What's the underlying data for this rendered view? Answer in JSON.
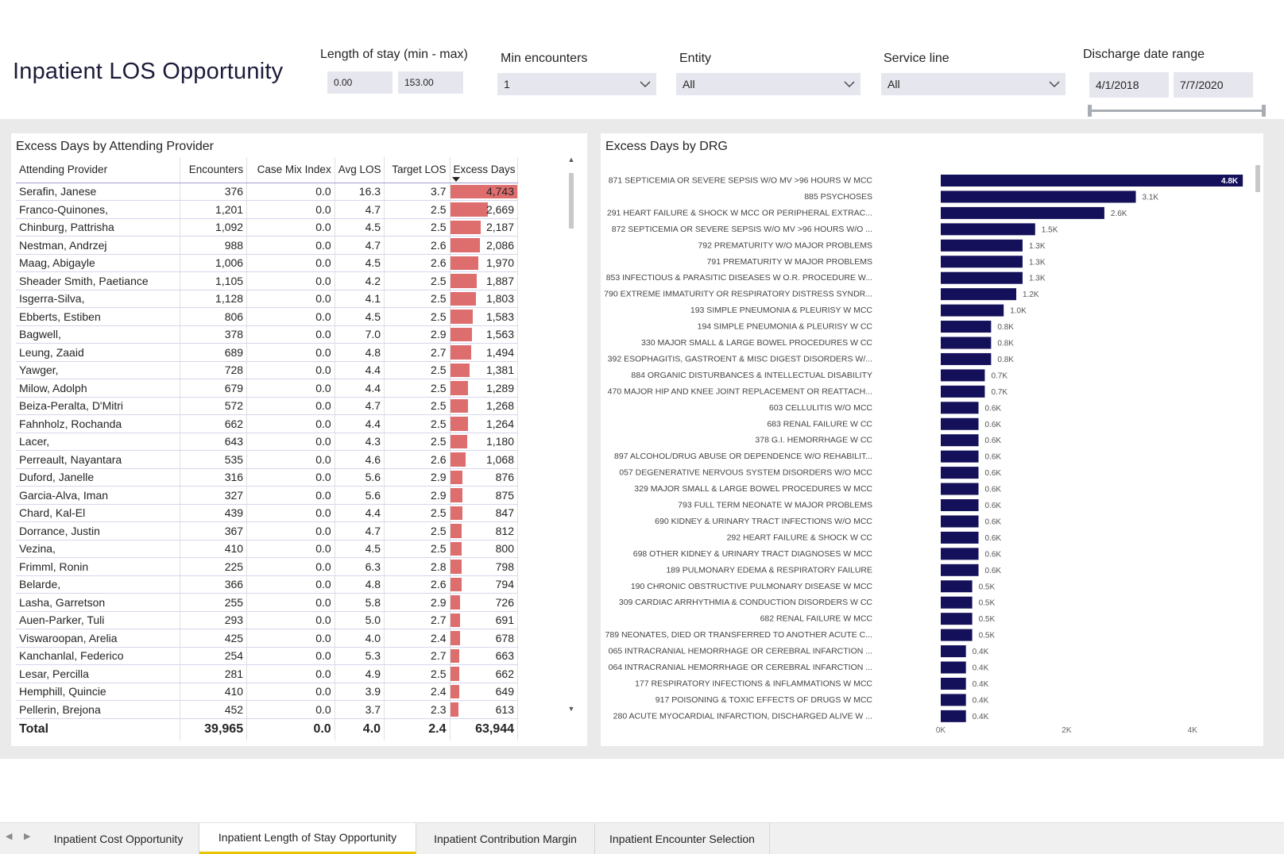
{
  "header": {
    "title": "Inpatient LOS Opportunity",
    "los_label": "Length of stay (min - max)",
    "los_min": "0.00",
    "los_max": "153.00",
    "min_enc_label": "Min encounters",
    "min_enc_value": "1",
    "entity_label": "Entity",
    "entity_value": "All",
    "service_label": "Service line",
    "service_value": "All",
    "date_label": "Discharge date range",
    "date_start": "4/1/2018",
    "date_end": "7/7/2020"
  },
  "provider_table": {
    "title": "Excess Days by Attending Provider",
    "columns": [
      "Attending Provider",
      "Encounters",
      "Case Mix Index",
      "Avg LOS",
      "Target LOS",
      "Excess Days"
    ],
    "bar_color": "#de6e6e",
    "rows": [
      {
        "name": "Serafin, Janese",
        "enc": "376",
        "cmi": "0.0",
        "avg": "16.3",
        "target": "3.7",
        "excess": "4,743",
        "excess_num": 4743
      },
      {
        "name": "Franco-Quinones,",
        "enc": "1,201",
        "cmi": "0.0",
        "avg": "4.7",
        "target": "2.5",
        "excess": "2,669",
        "excess_num": 2669
      },
      {
        "name": "Chinburg, Pattrisha",
        "enc": "1,092",
        "cmi": "0.0",
        "avg": "4.5",
        "target": "2.5",
        "excess": "2,187",
        "excess_num": 2187
      },
      {
        "name": "Nestman, Andrzej",
        "enc": "988",
        "cmi": "0.0",
        "avg": "4.7",
        "target": "2.6",
        "excess": "2,086",
        "excess_num": 2086
      },
      {
        "name": "Maag, Abigayle",
        "enc": "1,006",
        "cmi": "0.0",
        "avg": "4.5",
        "target": "2.6",
        "excess": "1,970",
        "excess_num": 1970
      },
      {
        "name": "Sheader Smith, Paetiance",
        "enc": "1,105",
        "cmi": "0.0",
        "avg": "4.2",
        "target": "2.5",
        "excess": "1,887",
        "excess_num": 1887
      },
      {
        "name": "Isgerra-Silva,",
        "enc": "1,128",
        "cmi": "0.0",
        "avg": "4.1",
        "target": "2.5",
        "excess": "1,803",
        "excess_num": 1803
      },
      {
        "name": "Ebberts, Estiben",
        "enc": "806",
        "cmi": "0.0",
        "avg": "4.5",
        "target": "2.5",
        "excess": "1,583",
        "excess_num": 1583
      },
      {
        "name": "Bagwell,",
        "enc": "378",
        "cmi": "0.0",
        "avg": "7.0",
        "target": "2.9",
        "excess": "1,563",
        "excess_num": 1563
      },
      {
        "name": "Leung, Zaaid",
        "enc": "689",
        "cmi": "0.0",
        "avg": "4.8",
        "target": "2.7",
        "excess": "1,494",
        "excess_num": 1494
      },
      {
        "name": "Yawger,",
        "enc": "728",
        "cmi": "0.0",
        "avg": "4.4",
        "target": "2.5",
        "excess": "1,381",
        "excess_num": 1381
      },
      {
        "name": "Milow, Adolph",
        "enc": "679",
        "cmi": "0.0",
        "avg": "4.4",
        "target": "2.5",
        "excess": "1,289",
        "excess_num": 1289
      },
      {
        "name": "Beiza-Peralta, D'Mitri",
        "enc": "572",
        "cmi": "0.0",
        "avg": "4.7",
        "target": "2.5",
        "excess": "1,268",
        "excess_num": 1268
      },
      {
        "name": "Fahnholz, Rochanda",
        "enc": "662",
        "cmi": "0.0",
        "avg": "4.4",
        "target": "2.5",
        "excess": "1,264",
        "excess_num": 1264
      },
      {
        "name": "Lacer,",
        "enc": "643",
        "cmi": "0.0",
        "avg": "4.3",
        "target": "2.5",
        "excess": "1,180",
        "excess_num": 1180
      },
      {
        "name": "Perreault, Nayantara",
        "enc": "535",
        "cmi": "0.0",
        "avg": "4.6",
        "target": "2.6",
        "excess": "1,068",
        "excess_num": 1068
      },
      {
        "name": "Duford, Janelle",
        "enc": "316",
        "cmi": "0.0",
        "avg": "5.6",
        "target": "2.9",
        "excess": "876",
        "excess_num": 876
      },
      {
        "name": "Garcia-Alva, Iman",
        "enc": "327",
        "cmi": "0.0",
        "avg": "5.6",
        "target": "2.9",
        "excess": "875",
        "excess_num": 875
      },
      {
        "name": "Chard, Kal-El",
        "enc": "439",
        "cmi": "0.0",
        "avg": "4.4",
        "target": "2.5",
        "excess": "847",
        "excess_num": 847
      },
      {
        "name": "Dorrance, Justin",
        "enc": "367",
        "cmi": "0.0",
        "avg": "4.7",
        "target": "2.5",
        "excess": "812",
        "excess_num": 812
      },
      {
        "name": "Vezina,",
        "enc": "410",
        "cmi": "0.0",
        "avg": "4.5",
        "target": "2.5",
        "excess": "800",
        "excess_num": 800
      },
      {
        "name": "Frimml, Ronin",
        "enc": "225",
        "cmi": "0.0",
        "avg": "6.3",
        "target": "2.8",
        "excess": "798",
        "excess_num": 798
      },
      {
        "name": "Belarde,",
        "enc": "366",
        "cmi": "0.0",
        "avg": "4.8",
        "target": "2.6",
        "excess": "794",
        "excess_num": 794
      },
      {
        "name": "Lasha, Garretson",
        "enc": "255",
        "cmi": "0.0",
        "avg": "5.8",
        "target": "2.9",
        "excess": "726",
        "excess_num": 726
      },
      {
        "name": "Auen-Parker, Tuli",
        "enc": "293",
        "cmi": "0.0",
        "avg": "5.0",
        "target": "2.7",
        "excess": "691",
        "excess_num": 691
      },
      {
        "name": "Viswaroopan, Arelia",
        "enc": "425",
        "cmi": "0.0",
        "avg": "4.0",
        "target": "2.4",
        "excess": "678",
        "excess_num": 678
      },
      {
        "name": "Kanchanlal, Federico",
        "enc": "254",
        "cmi": "0.0",
        "avg": "5.3",
        "target": "2.7",
        "excess": "663",
        "excess_num": 663
      },
      {
        "name": "Lesar, Percilla",
        "enc": "281",
        "cmi": "0.0",
        "avg": "4.9",
        "target": "2.5",
        "excess": "662",
        "excess_num": 662
      },
      {
        "name": "Hemphill, Quincie",
        "enc": "410",
        "cmi": "0.0",
        "avg": "3.9",
        "target": "2.4",
        "excess": "649",
        "excess_num": 649
      },
      {
        "name": "Pellerin, Brejona",
        "enc": "452",
        "cmi": "0.0",
        "avg": "3.7",
        "target": "2.3",
        "excess": "613",
        "excess_num": 613
      }
    ],
    "total": {
      "name": "Total",
      "enc": "39,965",
      "cmi": "0.0",
      "avg": "4.0",
      "target": "2.4",
      "excess": "63,944"
    }
  },
  "chart_data": {
    "type": "bar",
    "orientation": "horizontal",
    "title": "Excess Days by DRG",
    "bar_color": "#14105a",
    "xlim": [
      0,
      5000
    ],
    "xticks": [
      0,
      2000,
      4000
    ],
    "xtick_labels": [
      "0K",
      "2K",
      "4K"
    ],
    "grid": false,
    "categories": [
      "871 SEPTICEMIA OR SEVERE SEPSIS W/O MV >96 HOURS W MCC",
      "885 PSYCHOSES",
      "291 HEART FAILURE & SHOCK W MCC OR PERIPHERAL EXTRAC...",
      "872 SEPTICEMIA OR SEVERE SEPSIS W/O MV >96 HOURS W/O ...",
      "792 PREMATURITY W/O MAJOR PROBLEMS",
      "791 PREMATURITY W MAJOR PROBLEMS",
      "853 INFECTIOUS & PARASITIC DISEASES W O.R. PROCEDURE W...",
      "790 EXTREME IMMATURITY OR RESPIRATORY DISTRESS SYNDR...",
      "193 SIMPLE PNEUMONIA & PLEURISY W MCC",
      "194 SIMPLE PNEUMONIA & PLEURISY W CC",
      "330 MAJOR SMALL & LARGE BOWEL PROCEDURES W CC",
      "392 ESOPHAGITIS, GASTROENT & MISC DIGEST DISORDERS W/...",
      "884 ORGANIC DISTURBANCES & INTELLECTUAL DISABILITY",
      "470 MAJOR HIP AND KNEE JOINT REPLACEMENT OR REATTACH...",
      "603 CELLULITIS W/O MCC",
      "683 RENAL FAILURE W CC",
      "378 G.I. HEMORRHAGE W CC",
      "897 ALCOHOL/DRUG ABUSE OR DEPENDENCE W/O REHABILIT...",
      "057 DEGENERATIVE NERVOUS SYSTEM DISORDERS W/O MCC",
      "329 MAJOR SMALL & LARGE BOWEL PROCEDURES W MCC",
      "793 FULL TERM NEONATE W MAJOR PROBLEMS",
      "690 KIDNEY & URINARY TRACT INFECTIONS W/O MCC",
      "292 HEART FAILURE & SHOCK W CC",
      "698 OTHER KIDNEY & URINARY TRACT DIAGNOSES W MCC",
      "189 PULMONARY EDEMA & RESPIRATORY FAILURE",
      "190 CHRONIC OBSTRUCTIVE PULMONARY DISEASE W MCC",
      "309 CARDIAC ARRHYTHMIA & CONDUCTION DISORDERS W CC",
      "682 RENAL FAILURE W MCC",
      "789 NEONATES, DIED OR TRANSFERRED TO ANOTHER ACUTE C...",
      "065 INTRACRANIAL HEMORRHAGE OR CEREBRAL INFARCTION ...",
      "064 INTRACRANIAL HEMORRHAGE OR CEREBRAL INFARCTION ...",
      "177 RESPIRATORY INFECTIONS & INFLAMMATIONS W MCC",
      "917 POISONING & TOXIC EFFECTS OF DRUGS W MCC",
      "280 ACUTE MYOCARDIAL INFARCTION, DISCHARGED ALIVE W ..."
    ],
    "values": [
      4800,
      3100,
      2600,
      1500,
      1300,
      1300,
      1300,
      1200,
      1000,
      800,
      800,
      800,
      700,
      700,
      600,
      600,
      600,
      600,
      600,
      600,
      600,
      600,
      600,
      600,
      600,
      500,
      500,
      500,
      500,
      400,
      400,
      400,
      400,
      400
    ],
    "data_labels": [
      "4.8K",
      "3.1K",
      "2.6K",
      "1.5K",
      "1.3K",
      "1.3K",
      "1.3K",
      "1.2K",
      "1.0K",
      "0.8K",
      "0.8K",
      "0.8K",
      "0.7K",
      "0.7K",
      "0.6K",
      "0.6K",
      "0.6K",
      "0.6K",
      "0.6K",
      "0.6K",
      "0.6K",
      "0.6K",
      "0.6K",
      "0.6K",
      "0.6K",
      "0.5K",
      "0.5K",
      "0.5K",
      "0.5K",
      "0.4K",
      "0.4K",
      "0.4K",
      "0.4K",
      "0.4K"
    ]
  },
  "tabs": {
    "items": [
      "Inpatient Cost Opportunity",
      "Inpatient Length of Stay Opportunity",
      "Inpatient Contribution Margin",
      "Inpatient Encounter Selection"
    ],
    "active_index": 1,
    "accent": "#e8c300"
  }
}
